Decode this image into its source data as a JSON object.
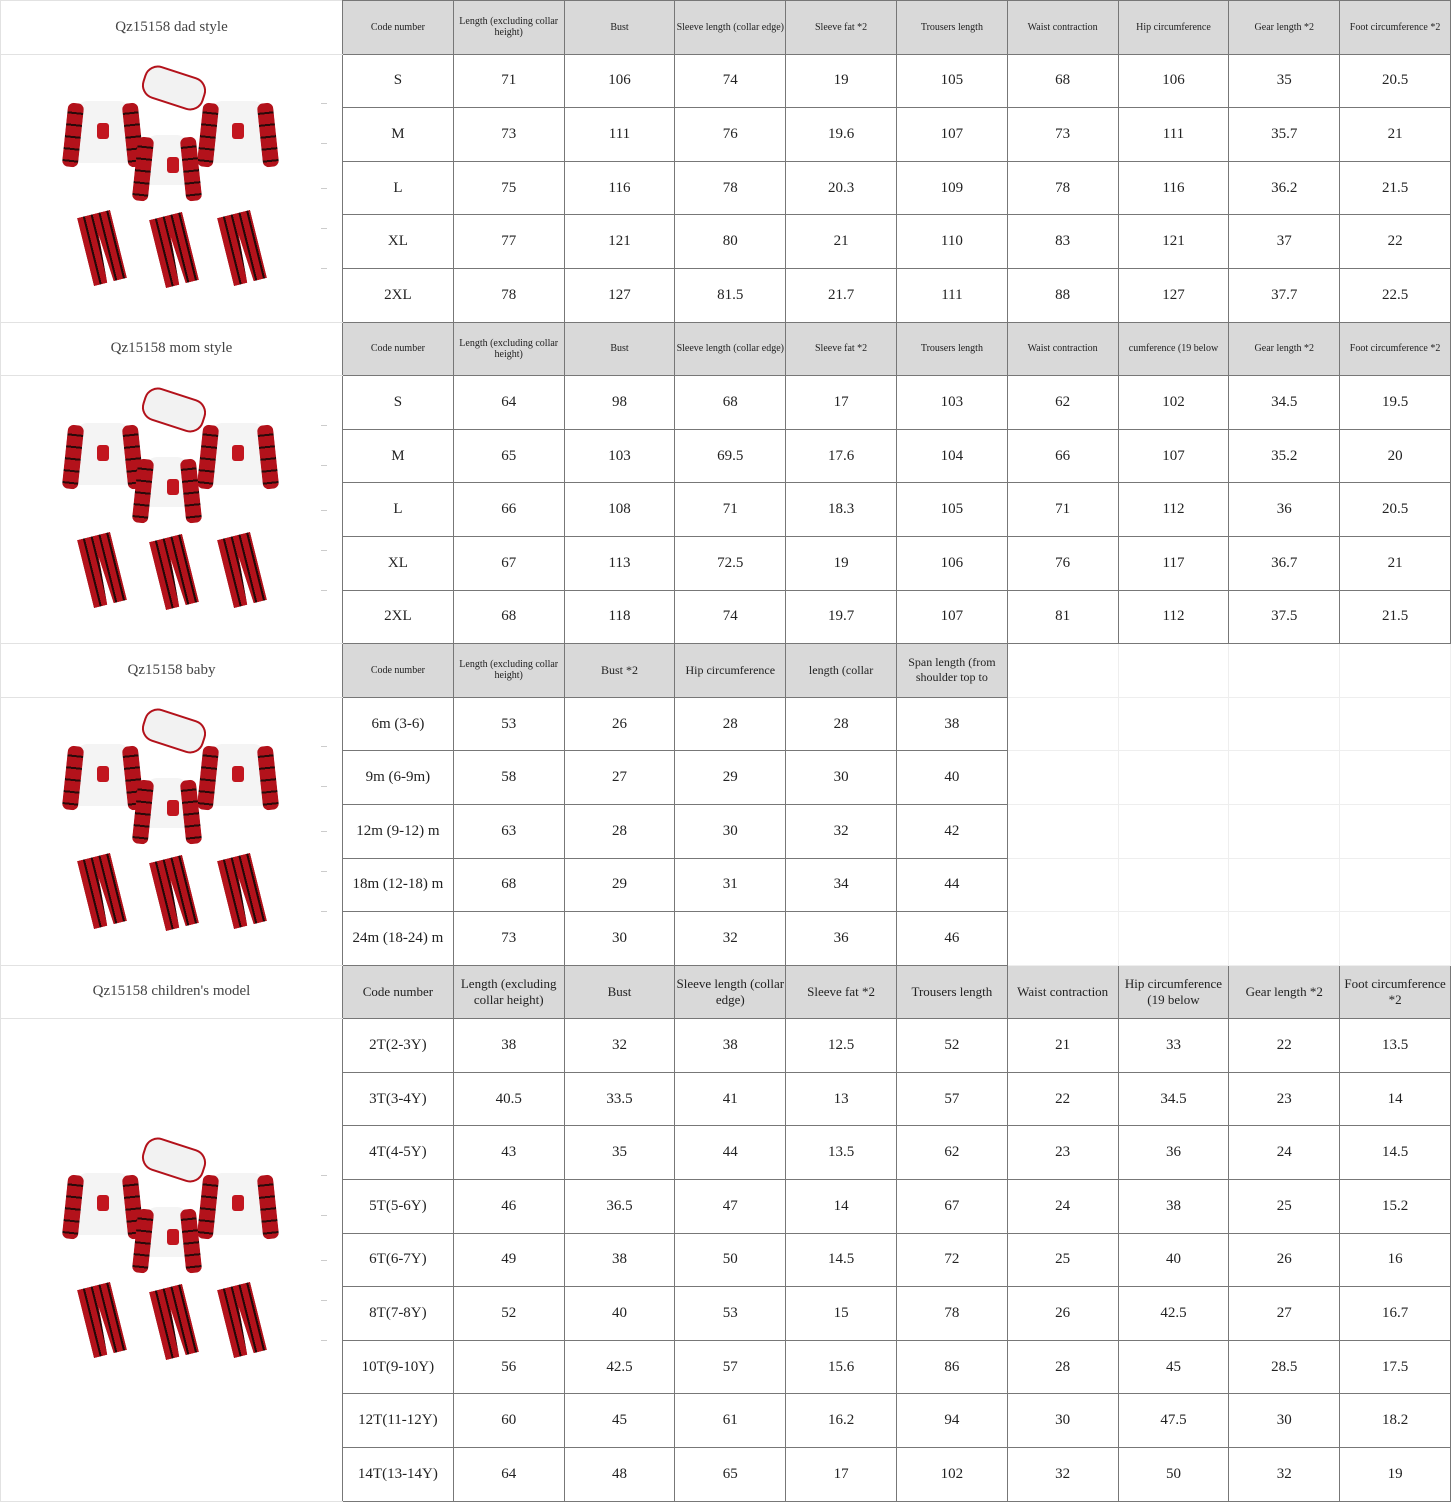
{
  "colors": {
    "header_bg": "#d9d9d9",
    "plaid_red": "#b3121b",
    "plaid_dark": "#240808"
  },
  "sections": [
    {
      "title": "Qz15158 dad style",
      "image": "family-christmas-pajamas-image",
      "header_style": "small",
      "headers": [
        "Code number",
        "Length (excluding collar height)",
        "Bust",
        "Sleeve length (collar edge)",
        "Sleeve fat *2",
        "Trousers length",
        "Waist contraction",
        "Hip circumference",
        "Gear length *2",
        "Foot circumference *2"
      ],
      "rows": [
        [
          "S",
          "71",
          "106",
          "74",
          "19",
          "105",
          "68",
          "106",
          "35",
          "20.5"
        ],
        [
          "M",
          "73",
          "111",
          "76",
          "19.6",
          "107",
          "73",
          "111",
          "35.7",
          "21"
        ],
        [
          "L",
          "75",
          "116",
          "78",
          "20.3",
          "109",
          "78",
          "116",
          "36.2",
          "21.5"
        ],
        [
          "XL",
          "77",
          "121",
          "80",
          "21",
          "110",
          "83",
          "121",
          "37",
          "22"
        ],
        [
          "2XL",
          "78",
          "127",
          "81.5",
          "21.7",
          "111",
          "88",
          "127",
          "37.7",
          "22.5"
        ]
      ]
    },
    {
      "title": "Qz15158 mom style",
      "image": "family-christmas-pajamas-image",
      "header_style": "small",
      "headers": [
        "Code number",
        "Length (excluding collar height)",
        "Bust",
        "Sleeve length (collar edge)",
        "Sleeve fat *2",
        "Trousers length",
        "Waist contraction",
        "cumference (19 below",
        "Gear length *2",
        "Foot circumference *2"
      ],
      "rows": [
        [
          "S",
          "64",
          "98",
          "68",
          "17",
          "103",
          "62",
          "102",
          "34.5",
          "19.5"
        ],
        [
          "M",
          "65",
          "103",
          "69.5",
          "17.6",
          "104",
          "66",
          "107",
          "35.2",
          "20"
        ],
        [
          "L",
          "66",
          "108",
          "71",
          "18.3",
          "105",
          "71",
          "112",
          "36",
          "20.5"
        ],
        [
          "XL",
          "67",
          "113",
          "72.5",
          "19",
          "106",
          "76",
          "117",
          "36.7",
          "21"
        ],
        [
          "2XL",
          "68",
          "118",
          "74",
          "19.7",
          "107",
          "81",
          "112",
          "37.5",
          "21.5"
        ]
      ]
    },
    {
      "title": "Qz15158 baby",
      "image": "family-christmas-pajamas-image",
      "header_style": "mixed",
      "headers": [
        "Code number",
        "Length (excluding collar height)",
        "Bust *2",
        "Hip circumference",
        "length (collar",
        "Span length (from shoulder top to"
      ],
      "rows": [
        [
          "6m (3-6)",
          "53",
          "26",
          "28",
          "28",
          "38"
        ],
        [
          "9m (6-9m)",
          "58",
          "27",
          "29",
          "30",
          "40"
        ],
        [
          "12m (9-12) m",
          "63",
          "28",
          "30",
          "32",
          "42"
        ],
        [
          "18m (12-18) m",
          "68",
          "29",
          "31",
          "34",
          "44"
        ],
        [
          "24m (18-24) m",
          "73",
          "30",
          "32",
          "36",
          "46"
        ]
      ]
    },
    {
      "title": "Qz15158 children's model",
      "image": "family-christmas-pajamas-image",
      "header_style": "big",
      "headers": [
        "Code number",
        "Length (excluding collar height)",
        "Bust",
        "Sleeve length (collar edge)",
        "Sleeve fat *2",
        "Trousers length",
        "Waist contraction",
        "Hip circumference (19 below",
        "Gear length *2",
        "Foot circumference *2"
      ],
      "rows": [
        [
          "2T(2-3Y)",
          "38",
          "32",
          "38",
          "12.5",
          "52",
          "21",
          "33",
          "22",
          "13.5"
        ],
        [
          "3T(3-4Y)",
          "40.5",
          "33.5",
          "41",
          "13",
          "57",
          "22",
          "34.5",
          "23",
          "14"
        ],
        [
          "4T(4-5Y)",
          "43",
          "35",
          "44",
          "13.5",
          "62",
          "23",
          "36",
          "24",
          "14.5"
        ],
        [
          "5T(5-6Y)",
          "46",
          "36.5",
          "47",
          "14",
          "67",
          "24",
          "38",
          "25",
          "15.2"
        ],
        [
          "6T(6-7Y)",
          "49",
          "38",
          "50",
          "14.5",
          "72",
          "25",
          "40",
          "26",
          "16"
        ],
        [
          "8T(7-8Y)",
          "52",
          "40",
          "53",
          "15",
          "78",
          "26",
          "42.5",
          "27",
          "16.7"
        ],
        [
          "10T(9-10Y)",
          "56",
          "42.5",
          "57",
          "15.6",
          "86",
          "28",
          "45",
          "28.5",
          "17.5"
        ],
        [
          "12T(11-12Y)",
          "60",
          "45",
          "61",
          "16.2",
          "94",
          "30",
          "47.5",
          "30",
          "18.2"
        ],
        [
          "14T(13-14Y)",
          "64",
          "48",
          "65",
          "17",
          "102",
          "32",
          "50",
          "32",
          "19"
        ]
      ]
    }
  ]
}
